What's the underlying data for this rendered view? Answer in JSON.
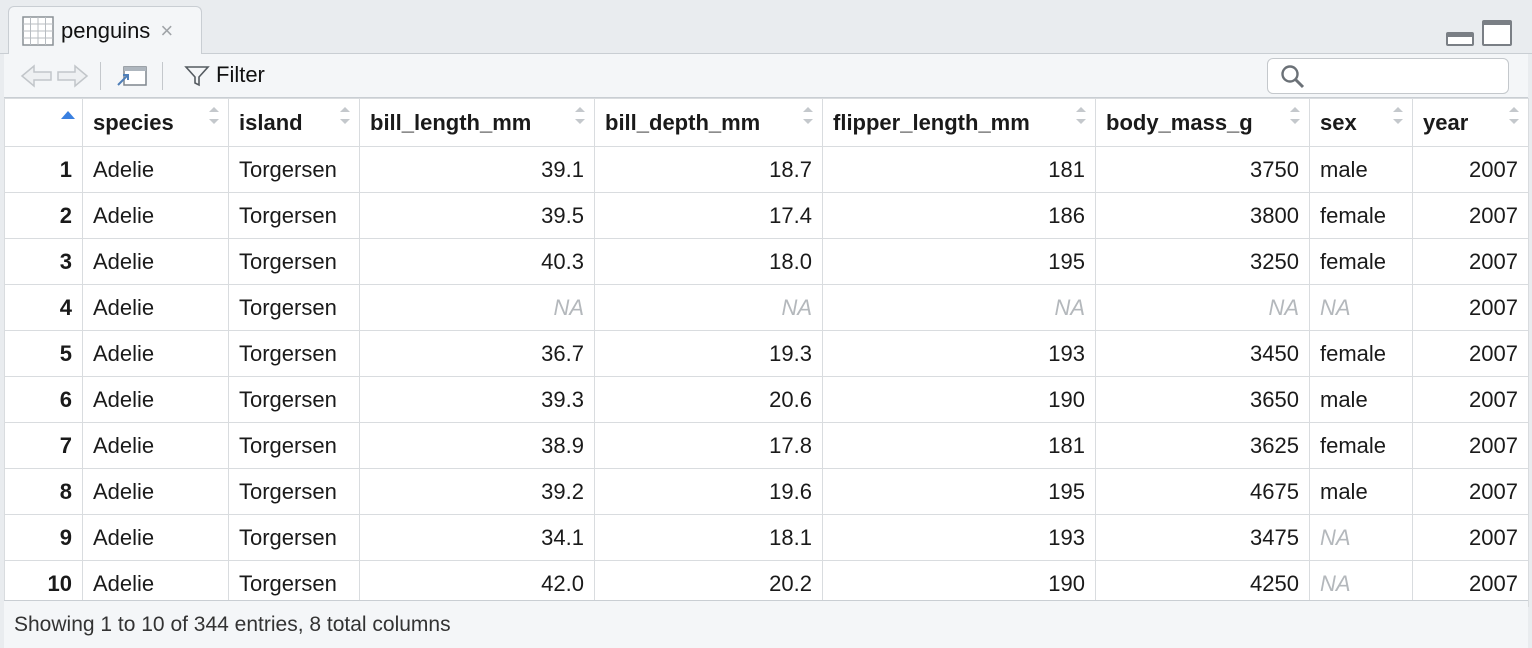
{
  "tab": {
    "title": "penguins",
    "close_glyph": "×"
  },
  "toolbar": {
    "filter_label": "Filter",
    "search_placeholder": ""
  },
  "icons": {
    "back": "back-arrow-icon",
    "forward": "forward-arrow-icon",
    "popout": "popout-window-icon",
    "filter": "filter-funnel-icon",
    "search": "search-icon",
    "grid": "table-grid-icon"
  },
  "table": {
    "columns": [
      "species",
      "island",
      "bill_length_mm",
      "bill_depth_mm",
      "flipper_length_mm",
      "body_mass_g",
      "sex",
      "year"
    ],
    "numeric_columns": [
      false,
      false,
      true,
      true,
      true,
      true,
      false,
      true
    ],
    "rows": [
      [
        "1",
        "Adelie",
        "Torgersen",
        "39.1",
        "18.7",
        "181",
        "3750",
        "male",
        "2007"
      ],
      [
        "2",
        "Adelie",
        "Torgersen",
        "39.5",
        "17.4",
        "186",
        "3800",
        "female",
        "2007"
      ],
      [
        "3",
        "Adelie",
        "Torgersen",
        "40.3",
        "18.0",
        "195",
        "3250",
        "female",
        "2007"
      ],
      [
        "4",
        "Adelie",
        "Torgersen",
        "NA",
        "NA",
        "NA",
        "NA",
        "NA",
        "2007"
      ],
      [
        "5",
        "Adelie",
        "Torgersen",
        "36.7",
        "19.3",
        "193",
        "3450",
        "female",
        "2007"
      ],
      [
        "6",
        "Adelie",
        "Torgersen",
        "39.3",
        "20.6",
        "190",
        "3650",
        "male",
        "2007"
      ],
      [
        "7",
        "Adelie",
        "Torgersen",
        "38.9",
        "17.8",
        "181",
        "3625",
        "female",
        "2007"
      ],
      [
        "8",
        "Adelie",
        "Torgersen",
        "39.2",
        "19.6",
        "195",
        "4675",
        "male",
        "2007"
      ],
      [
        "9",
        "Adelie",
        "Torgersen",
        "34.1",
        "18.1",
        "193",
        "3475",
        "NA",
        "2007"
      ],
      [
        "10",
        "Adelie",
        "Torgersen",
        "42.0",
        "20.2",
        "190",
        "4250",
        "NA",
        "2007"
      ]
    ]
  },
  "footer": {
    "status": "Showing 1 to 10 of 344 entries, 8 total columns"
  },
  "colors": {
    "accent": "#3a80e0",
    "na_text": "#b4b8bc",
    "border": "#d9dcdf"
  }
}
